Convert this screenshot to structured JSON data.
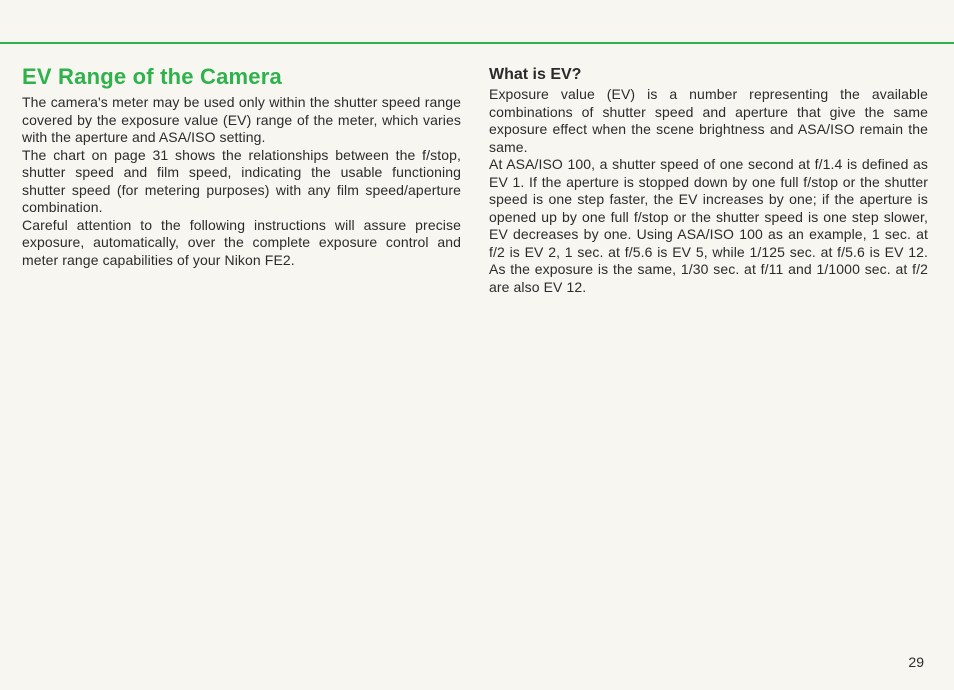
{
  "page": {
    "number": "29",
    "rule_color": "#2fb24c",
    "background_color": "#f7f6f1",
    "text_color": "#2b2b2b",
    "body_fontsize": 14,
    "line_height": 17.5,
    "title_fontsize": 22,
    "subhead_fontsize": 16
  },
  "left": {
    "title": "EV Range of the Camera",
    "p1": "The camera's meter may be used only within the shutter speed range covered by the exposure value (EV) range of the meter, which varies with the aperture and ASA/ISO setting.",
    "p2": "The chart on page 31 shows the relationships between the f/stop, shutter speed and film speed, indicating the usable functioning shutter speed (for metering purposes) with any film speed/aperture combination.",
    "p3": "Careful attention to the following instructions will assure precise exposure, automatically, over the complete exposure control and meter range capabilities of your Nikon FE2."
  },
  "right": {
    "subhead": "What is EV?",
    "p1": "Exposure value (EV) is a number representing the available combinations of shutter speed and aperture that give the same exposure effect when the scene brightness and ASA/ISO remain the same.",
    "p2": "At ASA/ISO 100, a shutter speed of one second at f/1.4 is defined as EV 1. If the aperture is stopped down by one full f/stop or the shutter speed is one step faster, the EV increases by one; if the aperture is opened up by one full f/stop or the shutter speed is one step slower, EV decreases by one. Using ASA/ISO 100 as an example, 1 sec. at f/2 is EV 2, 1 sec. at f/5.6 is EV 5, while 1/125 sec. at f/5.6 is EV 12. As the exposure is the same, 1/30 sec. at f/11 and 1/1000 sec. at f/2 are also EV 12."
  }
}
